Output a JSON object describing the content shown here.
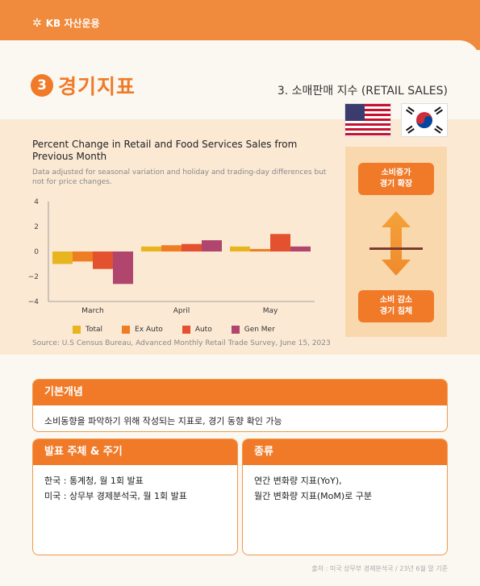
{
  "brand": {
    "name": "KB 자산운용"
  },
  "section": {
    "number": "3",
    "title": "경기지표",
    "subtitle": "3. 소매판매 지수 (RETAIL SALES)"
  },
  "chart_data": {
    "type": "bar",
    "title": "Percent Change in Retail and Food Services Sales from Previous Month",
    "note": "Data adjusted for seasonal variation and holiday and trading-day differences but not for price changes.",
    "source": "Source: U.S Census Bureau, Advanced Monthly Retail Trade Survey, June 15, 2023",
    "categories": [
      "March",
      "April",
      "May"
    ],
    "series": [
      {
        "name": "Total",
        "color": "#e8b521",
        "values": [
          -1.0,
          0.4,
          0.4
        ]
      },
      {
        "name": "Ex Auto",
        "color": "#ef7d22",
        "values": [
          -0.8,
          0.5,
          0.2
        ]
      },
      {
        "name": "Auto",
        "color": "#e4512f",
        "values": [
          -1.4,
          0.6,
          1.4
        ]
      },
      {
        "name": "Gen Mer",
        "color": "#b0456e",
        "values": [
          -2.6,
          0.9,
          0.4
        ]
      }
    ],
    "ylim": [
      -4,
      4
    ],
    "yticks": [
      4,
      2,
      0,
      -2,
      -4
    ],
    "yticks_text": [
      "4",
      "2",
      "0",
      "−2",
      "−4"
    ]
  },
  "indicator": {
    "up_label": "소비증가\n경기 확장",
    "down_label": "소비 감소\n경기 침체",
    "up_color": "#f07a28"
  },
  "basic": {
    "heading": "기본개념",
    "text": "소비동향을 파악하기 위해 작성되는 지표로, 경기 동향 확인 가능"
  },
  "publisher": {
    "heading": "발표 주체 & 주기",
    "line1": "한국 : 통계청, 월 1회 발표",
    "line2": "미국 : 상무부 경제분석국, 월 1회 발표"
  },
  "kind": {
    "heading": "종류",
    "line1": "연간 변화량 지표(YoY),",
    "line2": "월간 변화량 지표(MoM)로 구분"
  },
  "footnote": "출처 : 미국 상무부 경제분석국 / 23년 6월 말 기준"
}
